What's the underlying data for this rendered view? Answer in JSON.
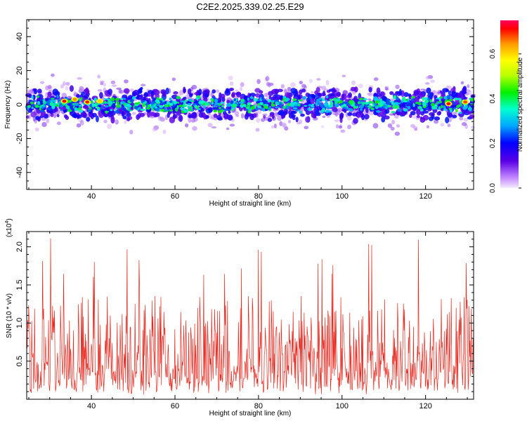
{
  "title": "C2E2.2025.339.02.25.E29",
  "chart_data": [
    {
      "type": "heatmap",
      "xlabel": "Height of straight line (km)",
      "ylabel": "Frequency (Hz)",
      "xlim": [
        24.5,
        131.5
      ],
      "ylim": [
        -50,
        50
      ],
      "xticks": [
        40,
        60,
        80,
        100,
        120
      ],
      "yticks": [
        -40,
        -20,
        0,
        20,
        40
      ],
      "colorbar": {
        "label": "Normalized spectral amplitude",
        "range": [
          0.0,
          0.75
        ],
        "ticks": [
          0.0,
          0.2,
          0.4,
          0.6
        ],
        "tick_labels": [
          "0.0",
          "0.2",
          "0.4",
          "0.6"
        ]
      },
      "band": {
        "center_hz": 0,
        "core_halfwidth_hz": 5,
        "outer_halfwidth_hz": 12
      },
      "hotspots": [
        {
          "x": 33.5,
          "y": 2,
          "value": 0.72
        },
        {
          "x": 36,
          "y": 3,
          "value": 0.65
        },
        {
          "x": 39,
          "y": 1.5,
          "value": 0.7
        },
        {
          "x": 42,
          "y": 2,
          "value": 0.6
        },
        {
          "x": 125.5,
          "y": 0.5,
          "value": 0.72
        },
        {
          "x": 129.5,
          "y": 1.5,
          "value": 0.68
        }
      ]
    },
    {
      "type": "line",
      "xlabel": "Height of straight line (km)",
      "ylabel": "SNR (10 * v/v)",
      "multiplier_label": "(x10",
      "multiplier_exp": "4",
      "xlim": [
        24.5,
        131.5
      ],
      "ylim": [
        0,
        2.2
      ],
      "xticks": [
        40,
        60,
        80,
        100,
        120
      ],
      "yticks": [
        0.5,
        1.0,
        1.5,
        2.0
      ],
      "ytick_labels": [
        "0.5",
        "1.0",
        "1.5",
        "2.0"
      ],
      "series": [
        {
          "name": "SNR",
          "color": "#e8281f",
          "x_start": 24.5,
          "x_end": 131.5,
          "points": 900,
          "typical_min": 0.1,
          "typical_max": 1.5,
          "peak": 2.15,
          "mean": 0.75
        }
      ]
    }
  ]
}
